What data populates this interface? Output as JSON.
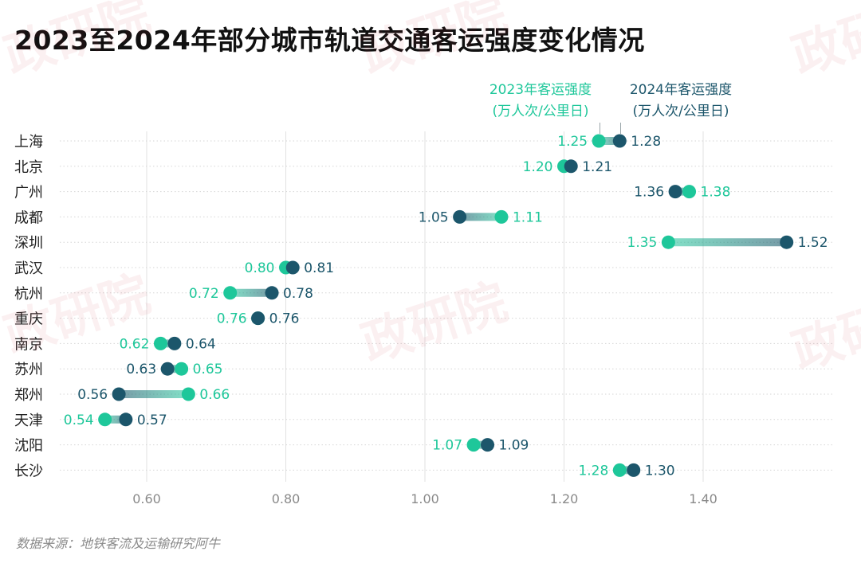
{
  "title": "2023至2024年部分城市轨道交通客运强度变化情况",
  "source": "数据来源：地铁客流及运输研究阿牛",
  "watermark": "政研院",
  "legend": {
    "s2023": [
      "2023年客运强度",
      "(万人次/公里日)"
    ],
    "s2024": [
      "2024年客运强度",
      "(万人次/公里日)"
    ]
  },
  "colors": {
    "s2023": "#1ec79a",
    "s2024": "#1c566b"
  },
  "chart_data": {
    "type": "dumbbell",
    "title": "2023至2024年部分城市轨道交通客运强度变化情况",
    "categories": [
      "上海",
      "北京",
      "广州",
      "成都",
      "深圳",
      "武汉",
      "杭州",
      "重庆",
      "南京",
      "苏州",
      "郑州",
      "天津",
      "沈阳",
      "长沙"
    ],
    "series": [
      {
        "name": "2023年客运强度(万人次/公里日)",
        "values": [
          "1.25",
          "1.20",
          "1.38",
          "1.11",
          "1.35",
          "0.80",
          "0.72",
          "0.76",
          "0.62",
          "0.65",
          "0.66",
          "0.54",
          "1.07",
          "1.28"
        ]
      },
      {
        "name": "2024年客运强度(万人次/公里日)",
        "values": [
          "1.28",
          "1.21",
          "1.36",
          "1.05",
          "1.52",
          "0.81",
          "0.78",
          "0.76",
          "0.64",
          "0.63",
          "0.56",
          "0.57",
          "1.09",
          "1.30"
        ]
      }
    ],
    "xlim": [
      0.47,
      1.53
    ],
    "xticks": [
      "0.60",
      "0.80",
      "1.00",
      "1.20",
      "1.40"
    ],
    "grid": true,
    "legend_position": "top-right"
  }
}
